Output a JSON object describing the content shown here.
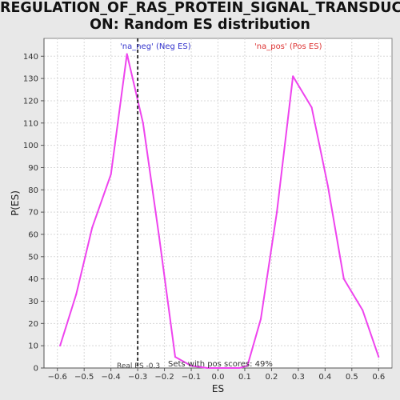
{
  "title_line1": "REGULATION_OF_RAS_PROTEIN_SIGNAL_TRANSDUCTI",
  "title_line2": "ON: Random ES distribution",
  "chart_data": {
    "type": "line",
    "xlabel": "ES",
    "ylabel": "P(ES)",
    "xlim": [
      -0.65,
      0.65
    ],
    "ylim": [
      0,
      148
    ],
    "xticks": [
      -0.6,
      -0.5,
      -0.4,
      -0.3,
      -0.2,
      -0.1,
      0.0,
      0.1,
      0.2,
      0.3,
      0.4,
      0.5,
      0.6
    ],
    "yticks": [
      0,
      10,
      20,
      30,
      40,
      50,
      60,
      70,
      80,
      90,
      100,
      110,
      120,
      130,
      140
    ],
    "grid": true,
    "series": [
      {
        "color": "#ee44ee",
        "x": [
          -0.59,
          -0.53,
          -0.47,
          -0.4,
          -0.34,
          -0.28,
          -0.22,
          -0.16,
          -0.1,
          -0.04,
          0.02,
          0.08,
          0.11,
          0.16,
          0.22,
          0.28,
          0.35,
          0.41,
          0.47,
          0.54,
          0.6
        ],
        "y": [
          10,
          33,
          63,
          87,
          141,
          110,
          59,
          5,
          1,
          0,
          0,
          0,
          1,
          22,
          70,
          131,
          117,
          82,
          40,
          26,
          5
        ]
      }
    ],
    "real_es": -0.3,
    "annotations": {
      "neg_label": "'na_neg' (Neg ES)",
      "pos_label": "'na_pos' (Pos ES)",
      "real_es_label": "Real ES -0.3",
      "pos_scores_label": "Sets with pos scores: 49%"
    },
    "colors": {
      "line": "#ee44ee",
      "neg_label": "#3333cc",
      "pos_label": "#dd3333",
      "marker": "#333333",
      "grid": "#d8d8d8"
    }
  }
}
